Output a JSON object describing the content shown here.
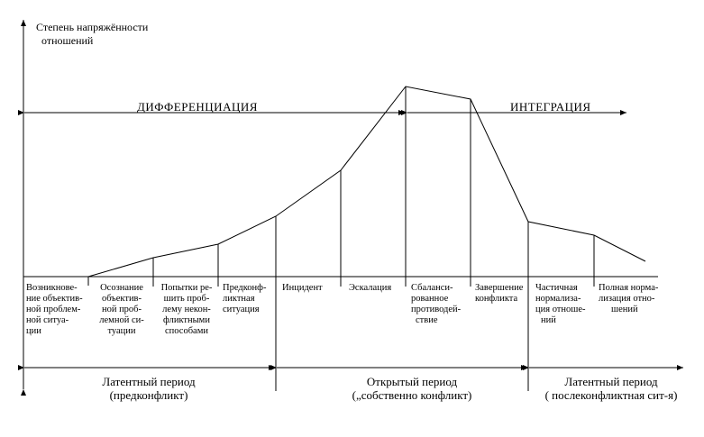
{
  "axis": {
    "y_label_line1": "Степень напряжённости",
    "y_label_line2": "отношений"
  },
  "bands": {
    "differentiation": "ДИФФЕРЕНЦИАЦИЯ",
    "integration": "ИНТЕГРАЦИЯ"
  },
  "stages": [
    {
      "id": "stage-emergence",
      "lines": [
        "Возникнове-",
        "ние объектив-",
        "ной проблем-",
        "ной ситуа-",
        "ции"
      ]
    },
    {
      "id": "stage-awareness",
      "lines": [
        "Осознание",
        "объектив-",
        "ной проб-",
        "лемной си-",
        "туации"
      ]
    },
    {
      "id": "stage-attempts",
      "lines": [
        "Попытки ре-",
        "шить проб-",
        "лему некон-",
        "фликтными",
        "способами"
      ]
    },
    {
      "id": "stage-preconflict",
      "lines": [
        "Предконф-",
        "ликтная",
        "ситуация"
      ]
    },
    {
      "id": "stage-incident",
      "lines": [
        "Инцидент"
      ]
    },
    {
      "id": "stage-escalation",
      "lines": [
        "Эскалация"
      ]
    },
    {
      "id": "stage-balanced",
      "lines": [
        "Сбаланси-",
        "рованное",
        "противодей-",
        "ствие"
      ]
    },
    {
      "id": "stage-completion",
      "lines": [
        "Завершение",
        "конфликта"
      ]
    },
    {
      "id": "stage-partial",
      "lines": [
        "Частичная",
        "нормализа-",
        "ция отноше-",
        "ний"
      ]
    },
    {
      "id": "stage-full",
      "lines": [
        "Полная норма-",
        "лизация отно-",
        "шений"
      ]
    }
  ],
  "periods": [
    {
      "id": "period-latent-pre",
      "line1": "Латентный период",
      "line2": "(предконфликт)"
    },
    {
      "id": "period-open",
      "line1": "Открытый период",
      "line2": "(„собственно конфликт)"
    },
    {
      "id": "period-latent-post",
      "line1": "Латентный период",
      "line2": "( послеконфликтная  сит-я)"
    }
  ]
}
